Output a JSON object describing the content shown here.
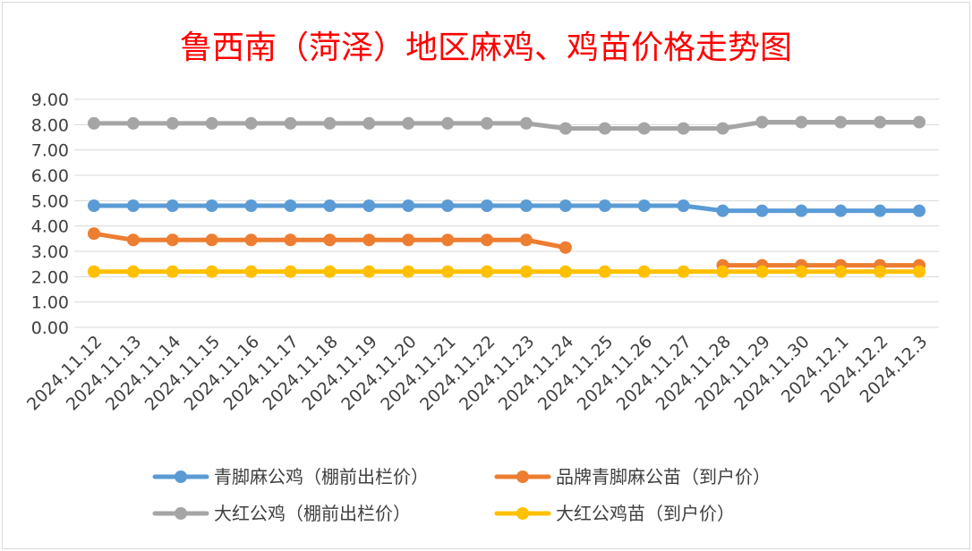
{
  "chart_data": {
    "type": "line",
    "title": "鲁西南（菏泽）地区麻鸡、鸡苗价格走势图",
    "xlabel": "",
    "ylabel": "",
    "ylim": [
      0,
      9
    ],
    "yticks": [
      "0.00",
      "1.00",
      "2.00",
      "3.00",
      "4.00",
      "5.00",
      "6.00",
      "7.00",
      "8.00",
      "9.00"
    ],
    "grid": true,
    "legend_position": "bottom",
    "categories": [
      "2024.11.12",
      "2024.11.13",
      "2024.11.14",
      "2024.11.15",
      "2024.11.16",
      "2024.11.17",
      "2024.11.18",
      "2024.11.19",
      "2024.11.20",
      "2024.11.21",
      "2024.11.22",
      "2024.11.23",
      "2024.11.24",
      "2024.11.25",
      "2024.11.26",
      "2024.11.27",
      "2024.11.28",
      "2024.11.29",
      "2024.11.30",
      "2024.12.1",
      "2024.12.2",
      "2024.12.3"
    ],
    "series": [
      {
        "name": "青脚麻公鸡（棚前出栏价）",
        "color": "#5b9bd5",
        "values": [
          4.8,
          4.8,
          4.8,
          4.8,
          4.8,
          4.8,
          4.8,
          4.8,
          4.8,
          4.8,
          4.8,
          4.8,
          4.8,
          4.8,
          4.8,
          4.8,
          4.6,
          4.6,
          4.6,
          4.6,
          4.6,
          4.6
        ]
      },
      {
        "name": "品牌青脚麻公苗（到户价）",
        "color": "#ed7d31",
        "values": [
          3.7,
          3.45,
          3.45,
          3.45,
          3.45,
          3.45,
          3.45,
          3.45,
          3.45,
          3.45,
          3.45,
          3.45,
          3.15,
          null,
          null,
          null,
          2.45,
          2.45,
          2.45,
          2.45,
          2.45,
          2.45
        ]
      },
      {
        "name": "大红公鸡（棚前出栏价）",
        "color": "#a5a5a5",
        "values": [
          8.05,
          8.05,
          8.05,
          8.05,
          8.05,
          8.05,
          8.05,
          8.05,
          8.05,
          8.05,
          8.05,
          8.05,
          7.85,
          7.85,
          7.85,
          7.85,
          7.85,
          8.1,
          8.1,
          8.1,
          8.1,
          8.1
        ]
      },
      {
        "name": "大红公鸡苗（到户价）",
        "color": "#ffc000",
        "values": [
          2.2,
          2.2,
          2.2,
          2.2,
          2.2,
          2.2,
          2.2,
          2.2,
          2.2,
          2.2,
          2.2,
          2.2,
          2.2,
          2.2,
          2.2,
          2.2,
          2.2,
          2.2,
          2.2,
          2.2,
          2.2,
          2.2
        ]
      }
    ]
  }
}
